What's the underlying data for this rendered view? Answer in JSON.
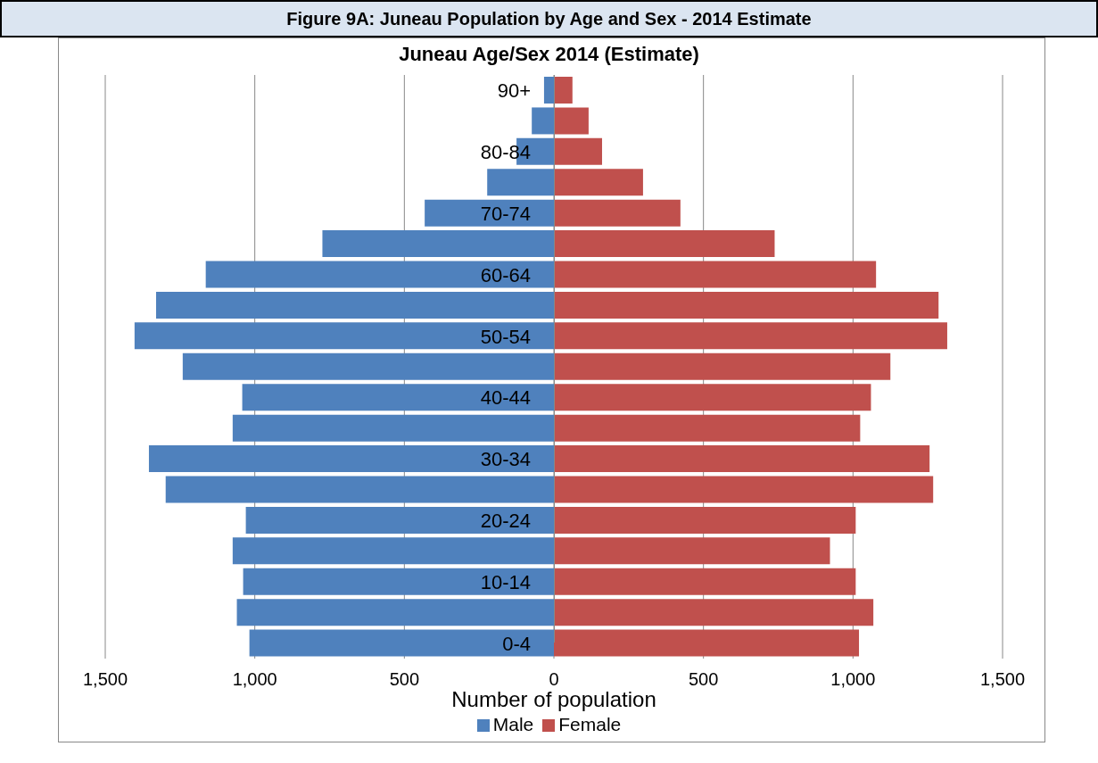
{
  "chart_data": {
    "type": "bar",
    "orientation": "horizontal",
    "title": "Figure 9A:  Juneau Population by Age and Sex - 2014 Estimate",
    "subtitle": "Juneau Age/Sex  2014 (Estimate)",
    "xlabel": "Number of population",
    "categories": [
      "90+",
      null,
      "80-84",
      null,
      "70-74",
      null,
      "60-64",
      null,
      "50-54",
      null,
      "40-44",
      null,
      "30-34",
      null,
      "20-24",
      null,
      "10-14",
      null,
      "0-4"
    ],
    "series": [
      {
        "name": "Male",
        "color": "#4f81bd",
        "values": [
          -33,
          -74,
          -125,
          -223,
          -432,
          -774,
          -1164,
          -1330,
          -1402,
          -1241,
          -1042,
          -1074,
          -1354,
          -1298,
          -1030,
          -1074,
          -1039,
          -1060,
          -1018
        ]
      },
      {
        "name": "Female",
        "color": "#c0504d",
        "values": [
          62,
          116,
          161,
          298,
          423,
          738,
          1077,
          1286,
          1315,
          1125,
          1060,
          1024,
          1256,
          1268,
          1009,
          923,
          1009,
          1068,
          1020
        ]
      }
    ],
    "xlim": [
      -1500,
      1500
    ],
    "xticks": [
      {
        "value": -1500,
        "label": "1,500"
      },
      {
        "value": -1000,
        "label": "1,000"
      },
      {
        "value": -500,
        "label": "500"
      },
      0,
      500,
      {
        "value": 1000,
        "label": "1,000"
      },
      {
        "value": 1500,
        "label": "1,500"
      }
    ],
    "grid": "x",
    "legend": "bottom",
    "stacked": true
  }
}
